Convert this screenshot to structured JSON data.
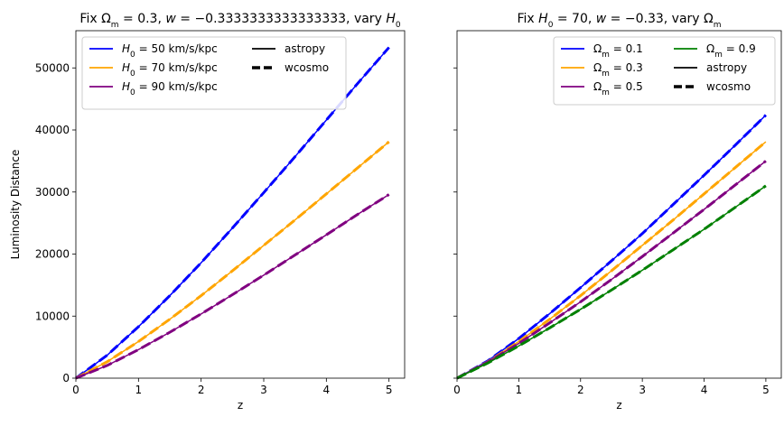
{
  "chart_data": [
    {
      "type": "line",
      "title": "Fix Ωm = 0.3, w = −0.3333333333333333, vary H0",
      "xlabel": "z",
      "ylabel": "Luminosity Distance",
      "xlim": [
        0,
        5.25
      ],
      "ylim": [
        0,
        56000
      ],
      "xticks": [
        "0",
        "1",
        "2",
        "3",
        "4",
        "5"
      ],
      "yticks": [
        "0",
        "10000",
        "20000",
        "30000",
        "40000",
        "50000"
      ],
      "grid": false,
      "legend_position": "top-left",
      "x": [
        0,
        0.5,
        1,
        1.5,
        2,
        2.5,
        3,
        3.5,
        4,
        4.5,
        5
      ],
      "series": [
        {
          "name": "H0 = 50 km/s/kpc",
          "color": "#0000ff",
          "values": [
            0,
            3700,
            8300,
            13300,
            18600,
            24200,
            29900,
            35700,
            41600,
            47500,
            53300
          ]
        },
        {
          "name": "H0 = 70 km/s/kpc",
          "color": "#ffa500",
          "values": [
            0,
            2650,
            5900,
            9500,
            13300,
            17300,
            21400,
            25500,
            29700,
            33900,
            38100
          ]
        },
        {
          "name": "H0 = 90 km/s/kpc",
          "color": "#800080",
          "values": [
            0,
            2050,
            4600,
            7400,
            10350,
            13450,
            16600,
            19850,
            23100,
            26400,
            29600
          ]
        }
      ],
      "style_legend": [
        {
          "name": "astropy",
          "style": "solid"
        },
        {
          "name": "wcosmo",
          "style": "dashed"
        }
      ]
    },
    {
      "type": "line",
      "title": "Fix H0 = 70, w = −0.33, vary Ωm",
      "xlabel": "z",
      "ylabel": "",
      "xlim": [
        0,
        5.25
      ],
      "ylim": [
        0,
        56000
      ],
      "xticks": [
        "0",
        "1",
        "2",
        "3",
        "4",
        "5"
      ],
      "yticks": [],
      "grid": false,
      "legend_position": "top-right",
      "x": [
        0,
        0.5,
        1,
        1.5,
        2,
        2.5,
        3,
        3.5,
        4,
        4.5,
        5
      ],
      "series": [
        {
          "name": "Ωm = 0.1",
          "color": "#0000ff",
          "values": [
            0,
            2800,
            6400,
            10400,
            14600,
            18900,
            23300,
            28000,
            32700,
            37500,
            42400
          ]
        },
        {
          "name": "Ωm = 0.3",
          "color": "#ffa500",
          "values": [
            0,
            2650,
            5900,
            9500,
            13300,
            17300,
            21400,
            25500,
            29700,
            33900,
            38100
          ]
        },
        {
          "name": "Ωm = 0.5",
          "color": "#800080",
          "values": [
            0,
            2600,
            5600,
            8900,
            12300,
            15900,
            19600,
            23400,
            27200,
            31100,
            35000
          ]
        },
        {
          "name": "Ωm = 0.9",
          "color": "#008000",
          "values": [
            0,
            2450,
            5200,
            8100,
            11100,
            14200,
            17400,
            20700,
            24000,
            27500,
            31000
          ]
        }
      ],
      "style_legend": [
        {
          "name": "astropy",
          "style": "solid"
        },
        {
          "name": "wcosmo",
          "style": "dashed"
        }
      ]
    }
  ]
}
